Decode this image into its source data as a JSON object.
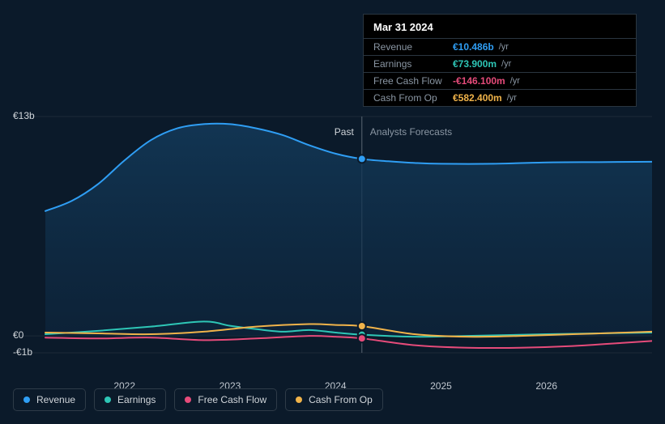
{
  "type": "line",
  "background_color": "#0b1a2a",
  "grid_color": "#1c2a38",
  "axis_label_color": "#d0d5da",
  "tick_fontsize": 12,
  "tooltip": {
    "bg": "#000000",
    "border": "#2a3540",
    "title": "Mar 31 2024",
    "title_color": "#ffffff",
    "title_fontsize": 13,
    "label_color": "#8a96a3",
    "suffix": "/yr",
    "rows": [
      {
        "label": "Revenue",
        "value": "€10.486b",
        "color": "#2f9ef4"
      },
      {
        "label": "Earnings",
        "value": "€73.900m",
        "color": "#2ec6b6"
      },
      {
        "label": "Free Cash Flow",
        "value": "-€146.100m",
        "color": "#e64b7a"
      },
      {
        "label": "Cash From Op",
        "value": "€582.400m",
        "color": "#f0b34a"
      }
    ]
  },
  "labels": {
    "past": "Past",
    "forecast": "Analysts Forecasts",
    "past_color": "#d0d5da",
    "forecast_color": "#8a96a3"
  },
  "y_axis": {
    "min": -1,
    "max": 13,
    "ticks": [
      {
        "v": 13,
        "label": "€13b"
      },
      {
        "v": 0,
        "label": "€0"
      },
      {
        "v": -1,
        "label": "-€1b"
      }
    ]
  },
  "x_axis": {
    "min": 2021.25,
    "max": 2027.0,
    "split": 2024.25,
    "ticks": [
      {
        "v": 2022,
        "label": "2022"
      },
      {
        "v": 2023,
        "label": "2023"
      },
      {
        "v": 2024,
        "label": "2024"
      },
      {
        "v": 2025,
        "label": "2025"
      },
      {
        "v": 2026,
        "label": "2026"
      }
    ]
  },
  "area_fill": {
    "from": "#133a5a",
    "to": "#0e2a44",
    "opacity": 0.85
  },
  "line_width": 2,
  "dot_radius": 5,
  "dot_stroke": "#0b1a2a",
  "series": [
    {
      "key": "revenue",
      "label": "Revenue",
      "color": "#2f9ef4",
      "fill": true,
      "points": [
        [
          2021.25,
          7.4
        ],
        [
          2021.5,
          8.0
        ],
        [
          2021.75,
          9.0
        ],
        [
          2022.0,
          10.4
        ],
        [
          2022.25,
          11.6
        ],
        [
          2022.5,
          12.3
        ],
        [
          2022.75,
          12.55
        ],
        [
          2023.0,
          12.55
        ],
        [
          2023.25,
          12.3
        ],
        [
          2023.5,
          11.9
        ],
        [
          2023.75,
          11.3
        ],
        [
          2024.0,
          10.8
        ],
        [
          2024.25,
          10.486
        ],
        [
          2024.5,
          10.35
        ],
        [
          2024.75,
          10.25
        ],
        [
          2025.0,
          10.2
        ],
        [
          2025.5,
          10.2
        ],
        [
          2026.0,
          10.28
        ],
        [
          2026.5,
          10.3
        ],
        [
          2027.0,
          10.32
        ]
      ],
      "dot": [
        2024.25,
        10.486
      ]
    },
    {
      "key": "earnings",
      "label": "Earnings",
      "color": "#2ec6b6",
      "points": [
        [
          2021.25,
          0.1
        ],
        [
          2021.75,
          0.3
        ],
        [
          2022.25,
          0.55
        ],
        [
          2022.75,
          0.85
        ],
        [
          2023.0,
          0.6
        ],
        [
          2023.25,
          0.4
        ],
        [
          2023.5,
          0.25
        ],
        [
          2023.75,
          0.35
        ],
        [
          2024.0,
          0.2
        ],
        [
          2024.25,
          0.074
        ],
        [
          2024.75,
          -0.05
        ],
        [
          2025.25,
          0.0
        ],
        [
          2026.0,
          0.1
        ],
        [
          2027.0,
          0.2
        ]
      ],
      "dot": [
        2024.25,
        0.074
      ]
    },
    {
      "key": "fcf",
      "label": "Free Cash Flow",
      "color": "#e64b7a",
      "points": [
        [
          2021.25,
          -0.1
        ],
        [
          2021.75,
          -0.15
        ],
        [
          2022.25,
          -0.1
        ],
        [
          2022.75,
          -0.25
        ],
        [
          2023.25,
          -0.15
        ],
        [
          2023.75,
          0.0
        ],
        [
          2024.0,
          -0.05
        ],
        [
          2024.25,
          -0.146
        ],
        [
          2024.75,
          -0.55
        ],
        [
          2025.25,
          -0.7
        ],
        [
          2025.75,
          -0.7
        ],
        [
          2026.25,
          -0.6
        ],
        [
          2026.75,
          -0.4
        ],
        [
          2027.0,
          -0.3
        ]
      ],
      "dot": [
        2024.25,
        -0.146
      ]
    },
    {
      "key": "cfo",
      "label": "Cash From Op",
      "color": "#f0b34a",
      "points": [
        [
          2021.25,
          0.2
        ],
        [
          2021.75,
          0.15
        ],
        [
          2022.25,
          0.1
        ],
        [
          2022.75,
          0.25
        ],
        [
          2023.25,
          0.55
        ],
        [
          2023.75,
          0.7
        ],
        [
          2024.0,
          0.65
        ],
        [
          2024.25,
          0.582
        ],
        [
          2024.75,
          0.1
        ],
        [
          2025.25,
          -0.05
        ],
        [
          2025.75,
          0.0
        ],
        [
          2026.25,
          0.1
        ],
        [
          2026.75,
          0.2
        ],
        [
          2027.0,
          0.25
        ]
      ],
      "dot": [
        2024.25,
        0.582
      ]
    }
  ],
  "legend_style": {
    "border_color": "#2e3b48",
    "border_radius": 5,
    "text_color": "#d0d5da"
  },
  "current_line_color": "#5a6672"
}
